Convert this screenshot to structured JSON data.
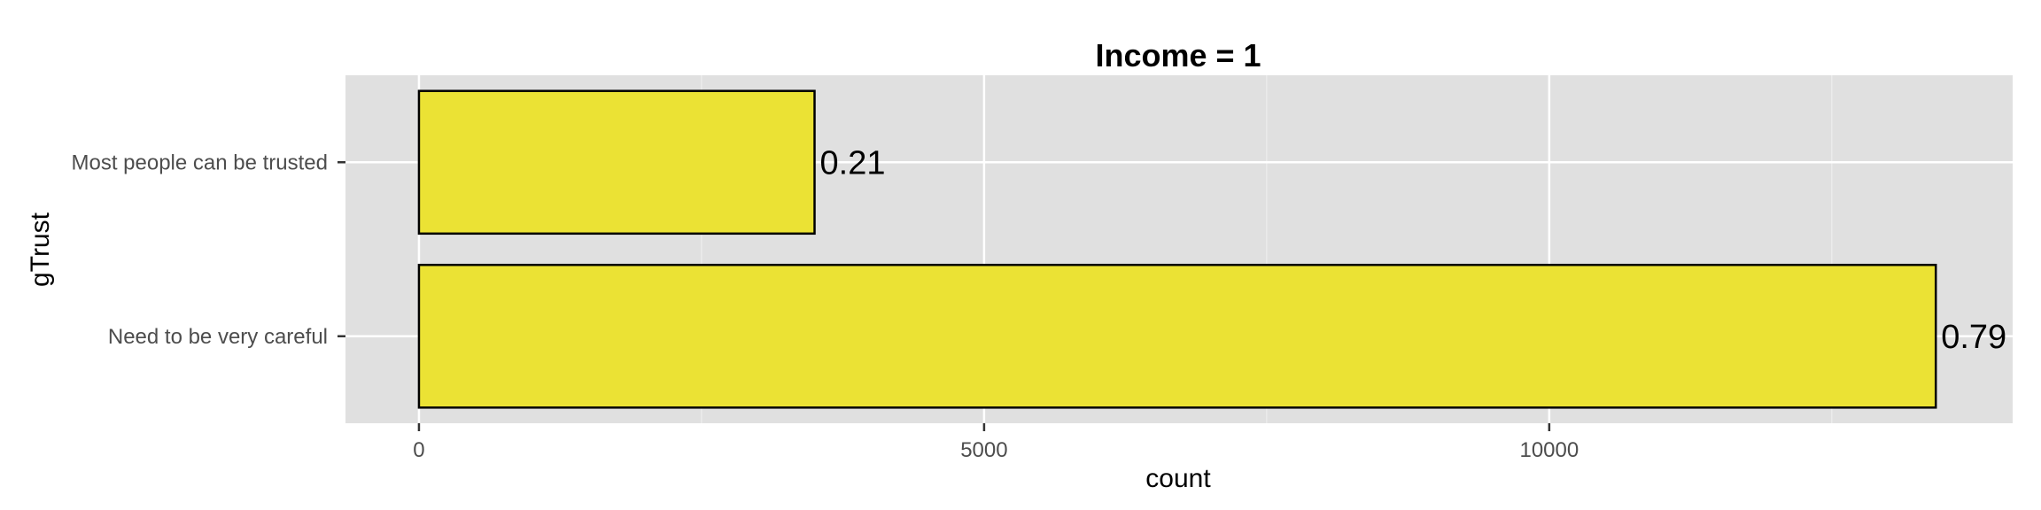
{
  "chart_data": {
    "type": "bar",
    "orientation": "horizontal",
    "title": "Income = 1",
    "xlabel": "count",
    "ylabel": "gTrust",
    "categories": [
      "Need to be very careful",
      "Most people can be trusted"
    ],
    "values": [
      13420,
      3500
    ],
    "data_labels": [
      "0.79",
      "0.21"
    ],
    "xlim": [
      -650,
      14100
    ],
    "x_ticks": [
      0,
      5000,
      10000
    ],
    "x_tick_labels": [
      "0",
      "5000",
      "10000"
    ],
    "x_minor_ticks": [
      2500,
      7500,
      12500
    ],
    "grid": true,
    "legend": "none",
    "colors": {
      "bar_fill": "#ebe234",
      "bar_stroke": "#000000",
      "panel_bg": "#e0e0e0",
      "grid": "#ffffff"
    }
  }
}
